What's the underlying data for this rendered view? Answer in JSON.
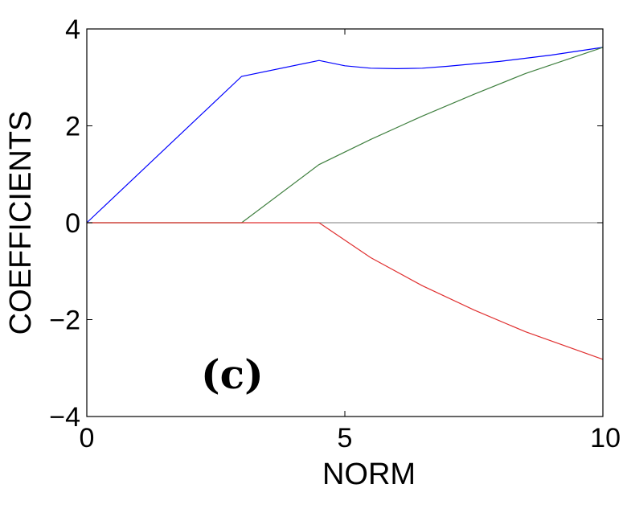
{
  "chart_data": {
    "type": "line",
    "title": "",
    "xlabel": "NORM",
    "ylabel": "COEFFICIENTS",
    "xlim": [
      0,
      10
    ],
    "ylim": [
      -4,
      4
    ],
    "xticks": [
      0,
      5,
      10
    ],
    "yticks": [
      -4,
      -2,
      0,
      2,
      4
    ],
    "xtick_labels": [
      "0",
      "5",
      "10"
    ],
    "ytick_labels": [
      "−4",
      "−2",
      "0",
      "2",
      "4"
    ],
    "grid": false,
    "legend": "none",
    "annotation": "(c)",
    "series": [
      {
        "color": "#0000ff",
        "x": [
          0,
          3.0,
          4.5,
          5.0,
          5.5,
          6.0,
          6.5,
          7.0,
          8.0,
          9.0,
          10.0
        ],
        "y": [
          0,
          3.02,
          3.35,
          3.24,
          3.19,
          3.18,
          3.19,
          3.23,
          3.33,
          3.46,
          3.62
        ]
      },
      {
        "color": "#408040",
        "x": [
          0,
          3.0,
          4.5,
          5.5,
          6.5,
          7.5,
          8.5,
          10.0
        ],
        "y": [
          0,
          0,
          1.2,
          1.72,
          2.2,
          2.65,
          3.08,
          3.62
        ]
      },
      {
        "color": "#e03030",
        "x": [
          0,
          4.5,
          5.5,
          6.5,
          7.5,
          8.5,
          10.0
        ],
        "y": [
          0,
          0,
          -0.72,
          -1.3,
          -1.8,
          -2.25,
          -2.82
        ]
      },
      {
        "color": "#505050",
        "x": [
          0,
          10.0
        ],
        "y": [
          0,
          0
        ]
      }
    ]
  }
}
